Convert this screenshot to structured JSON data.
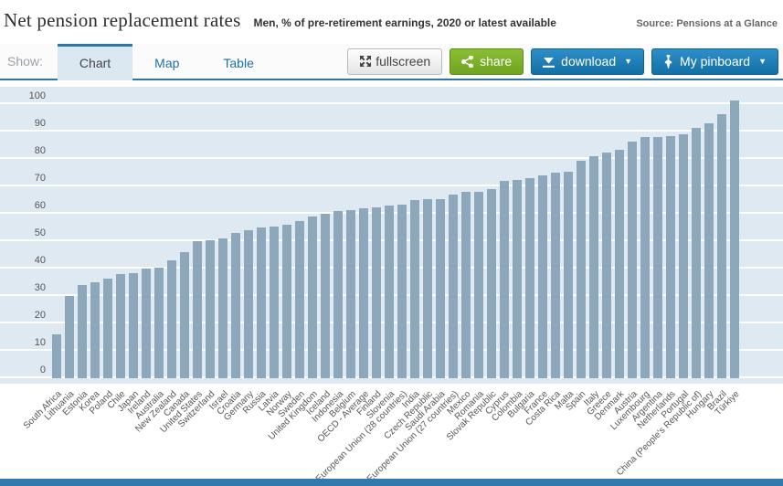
{
  "header": {
    "title": "Net pension replacement rates",
    "subtitle": "Men, % of pre-retirement earnings, 2020 or latest available",
    "source": "Source: Pensions at a Glance"
  },
  "tabs": {
    "show_label": "Show:",
    "items": [
      {
        "label": "Chart",
        "active": true
      },
      {
        "label": "Map",
        "active": false
      },
      {
        "label": "Table",
        "active": false
      }
    ]
  },
  "toolbar": {
    "fullscreen_label": "fullscreen",
    "share_label": "share",
    "download_label": "download",
    "pinboard_label": "My pinboard",
    "caret": "▼"
  },
  "colors": {
    "bar": "#8da8ba",
    "plot_background": "#dfe9f1",
    "gridline": "#ffffff",
    "tab_accent": "#2e76a4",
    "active_tab_background": "#dbe7f1",
    "link_blue": "#1d71a8",
    "share_green": "#7db32a",
    "button_blue": "#1a7ab5",
    "footer_blue": "#3279ae"
  },
  "chart_data": {
    "type": "bar",
    "title": "Net pension replacement rates",
    "subtitle": "Men, % of pre-retirement earnings, 2020 or latest available",
    "xlabel": "",
    "ylabel": "",
    "ylim": [
      0,
      106
    ],
    "yticks": [
      0,
      10,
      20,
      30,
      40,
      50,
      60,
      70,
      80,
      90,
      100
    ],
    "grid": true,
    "legend": "none",
    "categories": [
      "South Africa",
      "Lithuania",
      "Estonia",
      "Korea",
      "Poland",
      "Chile",
      "Japan",
      "Ireland",
      "Australia",
      "New Zealand",
      "Canada",
      "United States",
      "Switzerland",
      "Israel",
      "Croatia",
      "Germany",
      "Russia",
      "Latvia",
      "Norway",
      "Sweden",
      "United Kingdom",
      "Iceland",
      "Indonesia",
      "Belgium",
      "OECD - Average",
      "Finland",
      "Slovenia",
      "European Union (28 countries)",
      "India",
      "Czech Republic",
      "Saudi Arabia",
      "European Union (27 countries)",
      "Mexico",
      "Romania",
      "Slovak Republic",
      "Cyprus",
      "Colombia",
      "Bulgaria",
      "France",
      "Costa Rica",
      "Malta",
      "Spain",
      "Italy",
      "Greece",
      "Denmark",
      "Austria",
      "Luxembourg",
      "Argentina",
      "Netherlands",
      "Portugal",
      "China (People's Republic of)",
      "Hungary",
      "Brazil",
      "Türkiye"
    ],
    "values": [
      16,
      30,
      34,
      35,
      36.5,
      38,
      38.5,
      40,
      40.5,
      43,
      46,
      50,
      50.5,
      51,
      53,
      54,
      55,
      55.5,
      56,
      57.5,
      59,
      60,
      61,
      61.5,
      62,
      62.5,
      63,
      63.5,
      65,
      65.5,
      65.5,
      67,
      68,
      68,
      69,
      72,
      72.5,
      73,
      74,
      75,
      75.5,
      79.5,
      81,
      82.5,
      83.5,
      86.5,
      88,
      88,
      88.5,
      89,
      91.5,
      93,
      96.5,
      101.5
    ]
  }
}
